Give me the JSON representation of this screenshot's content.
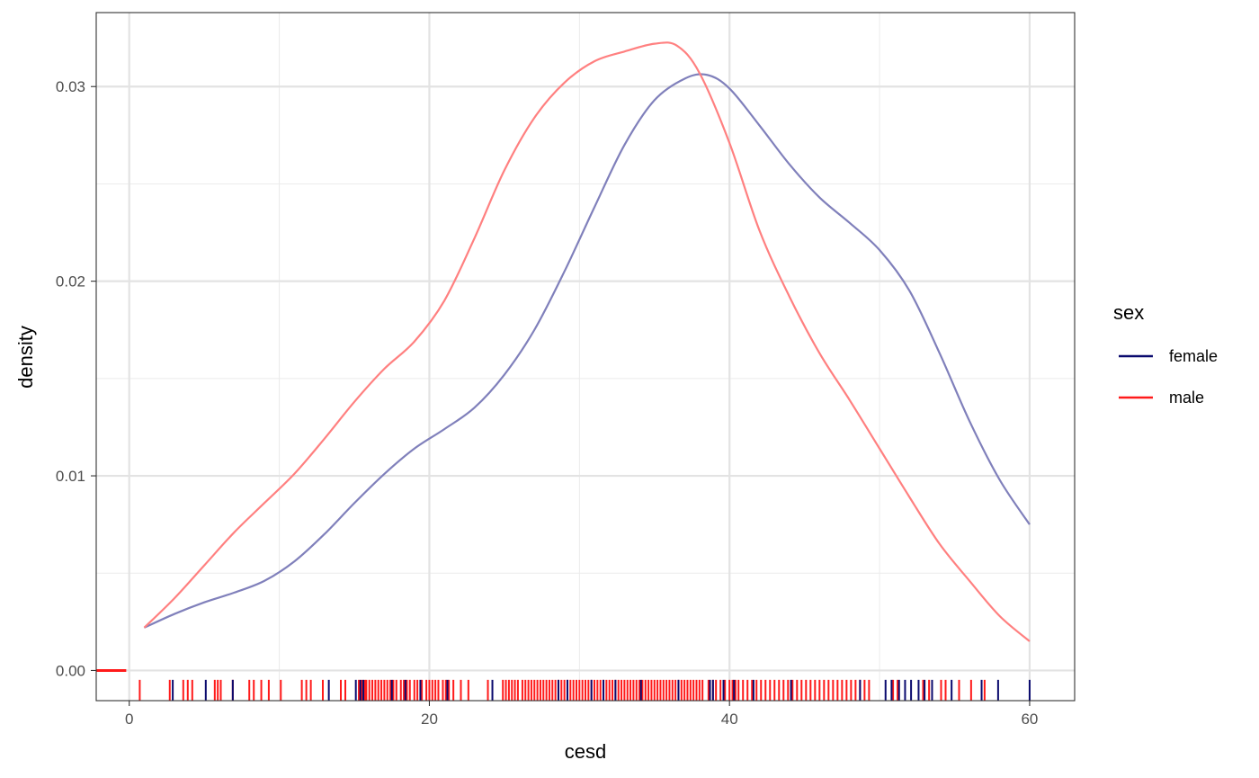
{
  "chart_data": {
    "type": "line",
    "subtype": "density",
    "xlabel": "cesd",
    "ylabel": "density",
    "xlim": [
      -2.2,
      63
    ],
    "ylim": [
      -0.00155,
      0.0338
    ],
    "x_ticks": [
      0,
      20,
      40,
      60
    ],
    "x_tick_labels": [
      "0",
      "20",
      "40",
      "60"
    ],
    "y_ticks": [
      0.0,
      0.01,
      0.02,
      0.03
    ],
    "y_tick_labels": [
      "0.00",
      "0.01",
      "0.02",
      "0.03"
    ],
    "grid": true,
    "legend": {
      "title": "sex",
      "position": "right",
      "entries": [
        {
          "label": "female",
          "color": "#0a0a6e"
        },
        {
          "label": "male",
          "color": "#ff1a1a"
        }
      ]
    },
    "series": [
      {
        "name": "female",
        "color": "#8080bb",
        "x": [
          1,
          3,
          5,
          7,
          9,
          11,
          13,
          15,
          17,
          19,
          21,
          23,
          25,
          27,
          29,
          31,
          33,
          35,
          37,
          38.5,
          40,
          42,
          44,
          46,
          48,
          50,
          52,
          54,
          56,
          58,
          60
        ],
        "y": [
          0.0022,
          0.0029,
          0.0035,
          0.004,
          0.0046,
          0.0056,
          0.007,
          0.0086,
          0.0101,
          0.0114,
          0.0124,
          0.0135,
          0.0152,
          0.0175,
          0.0205,
          0.0238,
          0.027,
          0.0293,
          0.0304,
          0.0306,
          0.0299,
          0.028,
          0.026,
          0.0243,
          0.023,
          0.0216,
          0.0195,
          0.0163,
          0.0128,
          0.0098,
          0.0075
        ]
      },
      {
        "name": "male",
        "color": "#ff8080",
        "x": [
          1,
          3,
          5,
          7,
          9,
          11,
          13,
          15,
          17,
          19,
          21,
          23,
          25,
          27,
          29,
          31,
          33,
          35,
          36.5,
          38,
          40,
          42,
          44,
          46,
          48,
          50,
          52,
          54,
          56,
          58,
          60
        ],
        "y": [
          0.0022,
          0.0037,
          0.0054,
          0.0071,
          0.0086,
          0.0101,
          0.0119,
          0.0138,
          0.0155,
          0.0169,
          0.019,
          0.0222,
          0.0257,
          0.0284,
          0.0302,
          0.0313,
          0.0318,
          0.0322,
          0.0321,
          0.0307,
          0.0271,
          0.0226,
          0.0192,
          0.0163,
          0.0139,
          0.0114,
          0.0089,
          0.0065,
          0.0046,
          0.0028,
          0.0015
        ]
      }
    ],
    "rug": {
      "male": [
        0.7,
        2.7,
        3.6,
        3.9,
        4.2,
        5.7,
        5.9,
        6.1,
        6.9,
        8.0,
        8.3,
        8.8,
        9.3,
        10.1,
        11.5,
        11.8,
        12.1,
        12.9,
        14.1,
        14.4,
        15.3,
        15.5,
        15.7,
        15.8,
        16.0,
        16.2,
        16.4,
        16.6,
        16.8,
        17.0,
        17.2,
        17.4,
        17.6,
        17.8,
        18.1,
        18.3,
        18.5,
        18.7,
        19.0,
        19.2,
        19.5,
        19.8,
        20.0,
        20.2,
        20.4,
        20.6,
        20.9,
        21.1,
        21.3,
        21.6,
        22.1,
        22.6,
        23.9,
        24.9,
        25.1,
        25.3,
        25.5,
        25.7,
        25.9,
        26.2,
        26.4,
        26.6,
        26.8,
        27.0,
        27.2,
        27.4,
        27.6,
        27.8,
        28.0,
        28.2,
        28.4,
        28.6,
        28.8,
        29.0,
        29.2,
        29.4,
        29.6,
        29.8,
        30.0,
        30.2,
        30.4,
        30.6,
        30.8,
        31.0,
        31.2,
        31.4,
        31.6,
        31.8,
        32.0,
        32.2,
        32.4,
        32.6,
        32.8,
        33.0,
        33.2,
        33.4,
        33.6,
        33.8,
        34.0,
        34.2,
        34.4,
        34.6,
        34.8,
        35.0,
        35.2,
        35.4,
        35.6,
        35.8,
        36.0,
        36.2,
        36.4,
        36.6,
        36.8,
        37.0,
        37.2,
        37.4,
        37.6,
        37.8,
        38.0,
        38.2,
        38.6,
        38.9,
        39.1,
        39.4,
        39.7,
        40.0,
        40.2,
        40.4,
        40.6,
        40.9,
        41.2,
        41.5,
        41.8,
        42.1,
        42.4,
        42.7,
        43.0,
        43.3,
        43.6,
        43.9,
        44.2,
        44.5,
        44.8,
        45.1,
        45.4,
        45.7,
        46.0,
        46.3,
        46.6,
        46.9,
        47.2,
        47.5,
        47.8,
        48.1,
        48.4,
        48.7,
        49.0,
        49.3,
        50.9,
        51.2,
        52.9,
        53.3,
        54.1,
        54.4,
        55.3,
        56.1,
        57.0
      ],
      "female": [
        2.9,
        5.1,
        6.9,
        13.3,
        15.1,
        15.4,
        15.6,
        17.5,
        18.4,
        19.4,
        21.2,
        24.2,
        28.6,
        29.2,
        30.8,
        31.6,
        32.4,
        34.1,
        36.6,
        38.7,
        38.9,
        39.6,
        40.3,
        41.6,
        44.1,
        48.7,
        50.4,
        50.8,
        51.3,
        51.7,
        52.1,
        52.6,
        53.0,
        53.5,
        54.8,
        56.8,
        57.9,
        60.0
      ]
    }
  }
}
